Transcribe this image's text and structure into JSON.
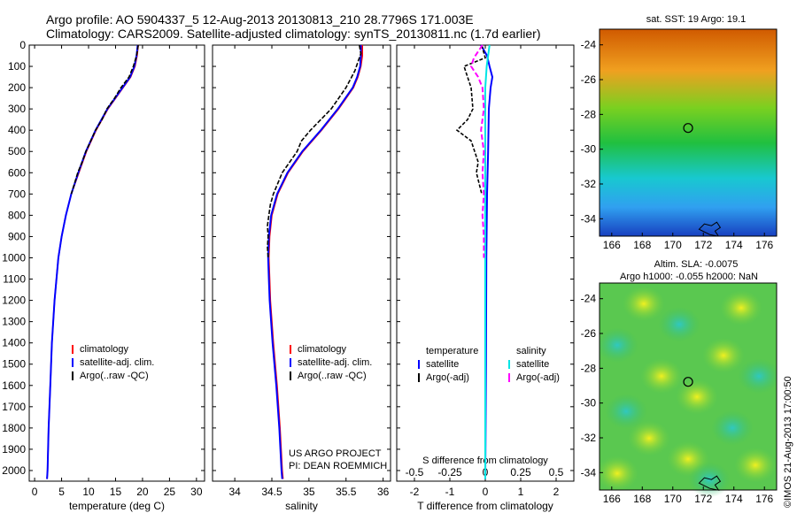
{
  "header": {
    "line1": "Argo profile: AO 5904337_5 12-Aug-2013 20130813_210 28.7796S 171.003E",
    "line2": "Climatology: CARS2009. Satellite-adjusted climatology: synTS_20130811.nc (1.7d earlier)"
  },
  "depth_ticks": [
    0,
    100,
    200,
    300,
    400,
    500,
    600,
    700,
    800,
    900,
    1000,
    1100,
    1200,
    1300,
    1400,
    1500,
    1600,
    1700,
    1800,
    1900,
    2000
  ],
  "colors": {
    "climatology": "#ff0000",
    "satellite": "#0000ff",
    "argo": "#000000",
    "sal_satellite": "#00e5e5",
    "sal_argo": "#ff00ff"
  },
  "chart_data": [
    {
      "type": "line",
      "xlabel": "temperature (deg C)",
      "xlim": [
        -1,
        31.5
      ],
      "xticks": [
        "0",
        "5",
        "10",
        "15",
        "20",
        "25",
        "30"
      ],
      "xtick_values": [
        0,
        5,
        10,
        15,
        20,
        25,
        30
      ],
      "ylim": [
        0,
        2050
      ],
      "legend": [
        "climatology",
        "satellite-adj. clim.",
        "Argo(..raw -QC)"
      ],
      "series": [
        {
          "name": "climatology",
          "depth": [
            0,
            50,
            100,
            150,
            200,
            300,
            400,
            500,
            600,
            700,
            800,
            900,
            1000,
            1200,
            1400,
            1600,
            1800,
            2000,
            2040
          ],
          "values": [
            19.2,
            19.0,
            18.6,
            17.8,
            16.4,
            13.6,
            11.4,
            9.6,
            8.2,
            6.8,
            5.8,
            5.0,
            4.4,
            3.7,
            3.2,
            2.9,
            2.6,
            2.4,
            2.3
          ]
        },
        {
          "name": "satellite-adj. clim.",
          "depth": [
            0,
            50,
            100,
            150,
            200,
            300,
            400,
            500,
            600,
            700,
            800,
            900,
            1000,
            1200,
            1400,
            1600,
            1800,
            2000,
            2040
          ],
          "values": [
            19.1,
            18.9,
            18.5,
            17.7,
            16.3,
            13.5,
            11.3,
            9.5,
            8.1,
            6.8,
            5.8,
            5.0,
            4.4,
            3.7,
            3.2,
            2.9,
            2.6,
            2.4,
            2.3
          ]
        },
        {
          "name": "Argo(..raw -QC)",
          "depth": [
            0,
            50,
            100,
            150,
            200,
            250,
            300,
            350,
            400,
            450,
            500,
            550,
            600,
            650,
            700
          ],
          "values": [
            19.2,
            18.9,
            18.3,
            17.5,
            16.0,
            14.8,
            13.4,
            12.5,
            11.3,
            10.4,
            9.5,
            8.8,
            8.0,
            7.4,
            6.8
          ]
        }
      ]
    },
    {
      "type": "line",
      "xlabel": "salinity",
      "xlim": [
        33.7,
        36.1
      ],
      "xticks": [
        "34",
        "34.5",
        "35",
        "35.5",
        "36"
      ],
      "xtick_values": [
        34,
        34.5,
        35,
        35.5,
        36
      ],
      "ylim": [
        0,
        2050
      ],
      "legend": [
        "climatology",
        "satellite-adj. clim.",
        "Argo(..raw -QC)"
      ],
      "annotation": [
        "US ARGO PROJECT",
        "PI: DEAN ROEMMICH"
      ],
      "series": [
        {
          "name": "climatology",
          "depth": [
            0,
            50,
            100,
            150,
            200,
            300,
            400,
            500,
            600,
            700,
            800,
            900,
            1000,
            1100,
            1200,
            1400,
            1600,
            1800,
            2000,
            2040
          ],
          "values": [
            35.72,
            35.72,
            35.7,
            35.66,
            35.6,
            35.4,
            35.17,
            34.92,
            34.72,
            34.58,
            34.5,
            34.47,
            34.46,
            34.47,
            34.48,
            34.52,
            34.57,
            34.61,
            34.64,
            34.65
          ]
        },
        {
          "name": "satellite-adj. clim.",
          "depth": [
            0,
            50,
            100,
            150,
            200,
            300,
            400,
            500,
            600,
            700,
            800,
            900,
            1000,
            1100,
            1200,
            1400,
            1600,
            1800,
            2000,
            2040
          ],
          "values": [
            35.7,
            35.7,
            35.69,
            35.65,
            35.59,
            35.39,
            35.16,
            34.91,
            34.71,
            34.57,
            34.49,
            34.46,
            34.45,
            34.46,
            34.47,
            34.51,
            34.56,
            34.6,
            34.63,
            34.64
          ]
        },
        {
          "name": "Argo(..raw -QC)",
          "depth": [
            0,
            40,
            80,
            120,
            160,
            200,
            250,
            300,
            350,
            400,
            450,
            500,
            550,
            600,
            650,
            700,
            750,
            800,
            850,
            900,
            950,
            1000
          ],
          "values": [
            35.68,
            35.7,
            35.66,
            35.62,
            35.56,
            35.5,
            35.4,
            35.3,
            35.16,
            35.02,
            34.9,
            34.84,
            34.74,
            34.64,
            34.58,
            34.52,
            34.48,
            34.46,
            34.44,
            34.45,
            34.44,
            34.45
          ]
        }
      ]
    },
    {
      "type": "line",
      "xlabel": "T difference from climatology",
      "xlabel_top": "S difference from climatology",
      "xlim": [
        -2.5,
        2.5
      ],
      "xticks": [
        "-2",
        "-1",
        "0",
        "1",
        "2"
      ],
      "xtick_values": [
        -2,
        -1,
        0,
        1,
        2
      ],
      "xlim_top": [
        -0.625,
        0.625
      ],
      "xticks_top": [
        "-0.5",
        "-0.25",
        "0",
        "0.25",
        "0.5"
      ],
      "xtick_values_top": [
        -0.5,
        -0.25,
        0,
        0.25,
        0.5
      ],
      "ylim": [
        0,
        2050
      ],
      "legend_left_title": "temperature",
      "legend_right_title": "salinity",
      "legend_left": [
        "satellite",
        "Argo(-adj)"
      ],
      "legend_right": [
        "satellite",
        "Argo(-adj)"
      ],
      "series": [
        {
          "name": "satellite",
          "depth": [
            0,
            50,
            100,
            150,
            200,
            300,
            500,
            700,
            1000,
            1500,
            2040
          ],
          "values": [
            -0.12,
            0.05,
            0.12,
            0.2,
            0.15,
            0.1,
            0.08,
            0.05,
            0.03,
            0.02,
            0.0
          ]
        },
        {
          "name": "Argo(-adj)",
          "depth": [
            0,
            60,
            100,
            150,
            200,
            300,
            350,
            400,
            450,
            500,
            550,
            600,
            700
          ],
          "values": [
            -0.1,
            0.0,
            -0.6,
            -0.5,
            -0.4,
            -0.35,
            -0.5,
            -0.8,
            -0.4,
            -0.3,
            -0.2,
            -0.25,
            -0.1
          ]
        },
        {
          "name": "satellite",
          "depth": [
            0,
            50,
            100,
            200,
            300,
            500,
            800,
            1000,
            1500,
            2040
          ],
          "values": [
            0.03,
            0.02,
            0.01,
            0.0,
            0.0,
            0.0,
            0.0,
            0.0,
            0.0,
            0.0
          ]
        },
        {
          "name": "Argo(-adj)",
          "depth": [
            0,
            60,
            100,
            150,
            200,
            300,
            400,
            500,
            600,
            700,
            800,
            900,
            1000
          ],
          "values": [
            -0.02,
            -0.08,
            -0.1,
            -0.05,
            -0.02,
            -0.01,
            -0.03,
            -0.01,
            -0.02,
            -0.01,
            -0.02,
            -0.01,
            -0.01
          ]
        }
      ]
    },
    {
      "type": "heatmap",
      "title": "sat. SST: 19 Argo: 19.1",
      "xticks": [
        "166",
        "168",
        "170",
        "172",
        "174",
        "176"
      ],
      "yticks": [
        "-24",
        "-26",
        "-28",
        "-30",
        "-32",
        "-34"
      ],
      "xlim": [
        165.2,
        176.8
      ],
      "ylim": [
        -35.0,
        -23.1
      ],
      "marker": [
        171.003,
        -28.78
      ]
    },
    {
      "type": "heatmap",
      "title_line1": "Altim. SLA: -0.0075",
      "title_line2": "Argo h1000: -0.055 h2000: NaN",
      "xticks": [
        "166",
        "168",
        "170",
        "172",
        "174",
        "176"
      ],
      "yticks": [
        "-24",
        "-26",
        "-28",
        "-30",
        "-32",
        "-34"
      ],
      "xlim": [
        165.2,
        176.8
      ],
      "ylim": [
        -35.0,
        -23.1
      ],
      "marker": [
        171.003,
        -28.78
      ]
    }
  ],
  "footer_vertical": "©IMOS 21-Aug-2013 17:00:50"
}
